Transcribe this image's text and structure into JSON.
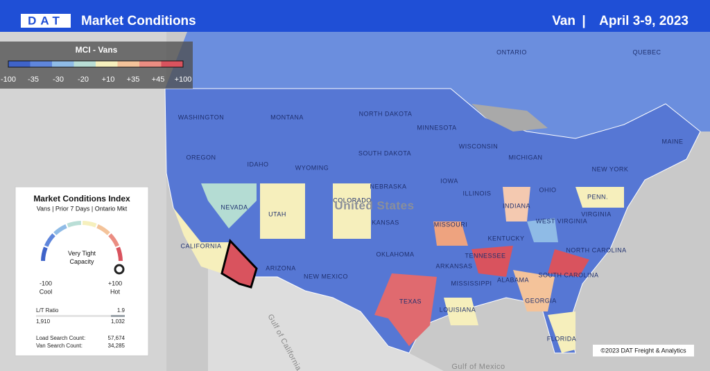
{
  "header": {
    "logo": "DAT",
    "title": "Market Conditions",
    "equipment": "Van",
    "separator": "|",
    "date": "April 3-9, 2023"
  },
  "legend": {
    "title": "MCI - Vans",
    "labels": [
      "-100",
      "-35",
      "-30",
      "-20",
      "+10",
      "+35",
      "+45",
      "+100"
    ],
    "colors": [
      "#3f63c9",
      "#5f86dc",
      "#8fbbe6",
      "#b9ded6",
      "#f6f0bd",
      "#f4c39a",
      "#eb8d82",
      "#d9535e"
    ]
  },
  "panel": {
    "title": "Market Conditions Index",
    "subtitle": "Vans | Prior 7 Days | Ontario Mkt",
    "status": "Very Tight Capacity",
    "min_value": "-100",
    "min_label": "Cool",
    "max_value": "+100",
    "max_label": "Hot",
    "ratio_label": "L/T Ratio",
    "ratio_value": "1.9",
    "loads": "1,910",
    "trucks": "1,032",
    "load_search_label": "Load Search Count:",
    "load_search_value": "57,674",
    "van_search_label": "Van Search Count:",
    "van_search_value": "34,285"
  },
  "map": {
    "labels": [
      "ONTARIO",
      "QUEBEC",
      "WASHINGTON",
      "MONTANA",
      "NORTH DAKOTA",
      "MINNESOTA",
      "OREGON",
      "IDAHO",
      "WYOMING",
      "SOUTH DAKOTA",
      "WISCONSIN",
      "MICHIGAN",
      "MAINE",
      "NEW YORK",
      "NEVADA",
      "UTAH",
      "COLORADO",
      "NEBRASKA",
      "KANSAS",
      "IOWA",
      "ILLINOIS",
      "INDIANA",
      "OHIO",
      "PENN.",
      "CALIFORNIA",
      "ARIZONA",
      "NEW MEXICO",
      "OKLAHOMA",
      "TEXAS",
      "MISSOURI",
      "ARKANSAS",
      "TENNESSEE",
      "MISSISSIPPI",
      "ALABAMA",
      "GEORGIA",
      "LOUISIANA",
      "KENTUCKY",
      "WEST VIRGINIA",
      "VIRGINIA",
      "NORTH CAROLINA",
      "SOUTH CAROLINA",
      "FLORIDA",
      "United States",
      "Gulf of Mexico",
      "Gulf of California"
    ],
    "copyright": "©2023 DAT Freight & Analytics"
  }
}
